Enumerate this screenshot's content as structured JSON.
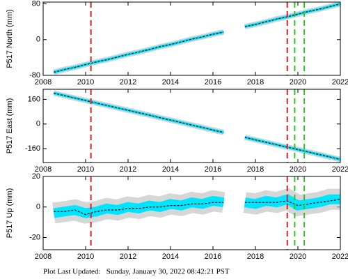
{
  "chart_data": [
    {
      "type": "line",
      "ylabel": "P517 North (mm)",
      "x": [
        2008.5,
        2009,
        2009.5,
        2010,
        2010.5,
        2011,
        2011.5,
        2012,
        2012.5,
        2013,
        2013.5,
        2014,
        2014.5,
        2015,
        2015.5,
        2016,
        2016.5,
        2017,
        2017.5,
        2018,
        2018.5,
        2019,
        2019.5,
        2020,
        2020.5,
        2021,
        2021.5,
        2022
      ],
      "series": [
        {
          "color": "#00e5ff",
          "values": [
            -73,
            -67,
            -62,
            -56,
            -50,
            -45,
            -39,
            -33,
            -28,
            -22,
            -16,
            -11,
            -5,
            1,
            6,
            12,
            17,
            null,
            29,
            34,
            40,
            46,
            51,
            57,
            63,
            68,
            74,
            80
          ]
        },
        {
          "color": "#000000",
          "dashed": true,
          "values": [
            -73,
            -67,
            -62,
            -56,
            -50,
            -45,
            -39,
            -33,
            -28,
            -22,
            -16,
            -11,
            -5,
            1,
            6,
            12,
            17,
            null,
            29,
            34,
            40,
            46,
            51,
            57,
            63,
            68,
            74,
            80
          ]
        }
      ],
      "xlim": [
        2008,
        2022
      ],
      "xticks": [
        2008,
        2010,
        2012,
        2014,
        2016,
        2018,
        2020,
        2022
      ],
      "ylim": [
        -80,
        84
      ],
      "yticks": [
        -80,
        0,
        80
      ],
      "events": [
        {
          "x": 2010.25,
          "color": "#e02020"
        },
        {
          "x": 2019.5,
          "color": "#e02020"
        },
        {
          "x": 2019.85,
          "color": "#30c030"
        },
        {
          "x": 2020.3,
          "color": "#30c030"
        }
      ]
    },
    {
      "type": "line",
      "ylabel": "P517 East (mm)",
      "x": [
        2008.5,
        2009,
        2009.5,
        2010,
        2010.5,
        2011,
        2011.5,
        2012,
        2012.5,
        2013,
        2013.5,
        2014,
        2014.5,
        2015,
        2015.5,
        2016,
        2016.5,
        2017,
        2017.5,
        2018,
        2018.5,
        2019,
        2019.5,
        2020,
        2020.5,
        2021,
        2021.5,
        2022
      ],
      "series": [
        {
          "color": "#00e5ff",
          "values": [
            200,
            184,
            168,
            152,
            136,
            120,
            104,
            89,
            73,
            57,
            41,
            25,
            9,
            -7,
            -23,
            -39,
            -55,
            null,
            -87,
            -103,
            -119,
            -135,
            -150,
            -166,
            -182,
            -198,
            -214,
            -230
          ]
        },
        {
          "color": "#000000",
          "dashed": true,
          "values": [
            200,
            184,
            168,
            152,
            136,
            120,
            104,
            89,
            73,
            57,
            41,
            25,
            9,
            -7,
            -23,
            -39,
            -55,
            null,
            -87,
            -103,
            -119,
            -135,
            -150,
            -166,
            -182,
            -198,
            -214,
            -230
          ]
        }
      ],
      "xlim": [
        2008,
        2022
      ],
      "xticks": [
        2008,
        2010,
        2012,
        2014,
        2016,
        2018,
        2020,
        2022
      ],
      "ylim": [
        -250,
        225
      ],
      "yticks": [
        -160,
        0,
        160
      ],
      "events": [
        {
          "x": 2010.25,
          "color": "#e02020"
        },
        {
          "x": 2019.5,
          "color": "#e02020"
        },
        {
          "x": 2019.85,
          "color": "#30c030"
        },
        {
          "x": 2020.3,
          "color": "#30c030"
        }
      ]
    },
    {
      "type": "line",
      "ylabel": "P517 Up (mm)",
      "x": [
        2008.5,
        2009,
        2009.5,
        2010,
        2010.5,
        2011,
        2011.5,
        2012,
        2012.5,
        2013,
        2013.5,
        2014,
        2014.5,
        2015,
        2015.5,
        2016,
        2016.5,
        2017,
        2017.5,
        2018,
        2018.5,
        2019,
        2019.5,
        2020,
        2020.5,
        2021,
        2021.5,
        2022
      ],
      "series": [
        {
          "color": "#00e5ff",
          "values": [
            -4,
            -3,
            -2,
            -4,
            -3,
            -1,
            -2,
            0,
            -1,
            1,
            0,
            2,
            1,
            3,
            2,
            4,
            3,
            null,
            3,
            2,
            4,
            3,
            5,
            1,
            2,
            3,
            5,
            5
          ]
        },
        {
          "color": "#000000",
          "dashed": true,
          "values": [
            -3,
            -3,
            -2,
            -5,
            -3,
            -2,
            -2,
            -1,
            -1,
            0,
            0,
            1,
            1,
            2,
            2,
            3,
            3,
            null,
            3,
            3,
            3,
            3,
            4,
            1,
            2,
            3,
            4,
            5
          ]
        }
      ],
      "xlim": [
        2008,
        2022
      ],
      "xticks": [
        2008,
        2010,
        2012,
        2014,
        2016,
        2018,
        2020,
        2022
      ],
      "ylim": [
        -28,
        20
      ],
      "yticks": [
        -20,
        0,
        20
      ],
      "events": [
        {
          "x": 2010.25,
          "color": "#e02020"
        },
        {
          "x": 2019.5,
          "color": "#e02020"
        },
        {
          "x": 2019.85,
          "color": "#30c030"
        },
        {
          "x": 2020.3,
          "color": "#30c030"
        }
      ]
    }
  ],
  "footer": "Plot Last Updated:   Sunday, January 30, 2022 08:42:21 PST"
}
